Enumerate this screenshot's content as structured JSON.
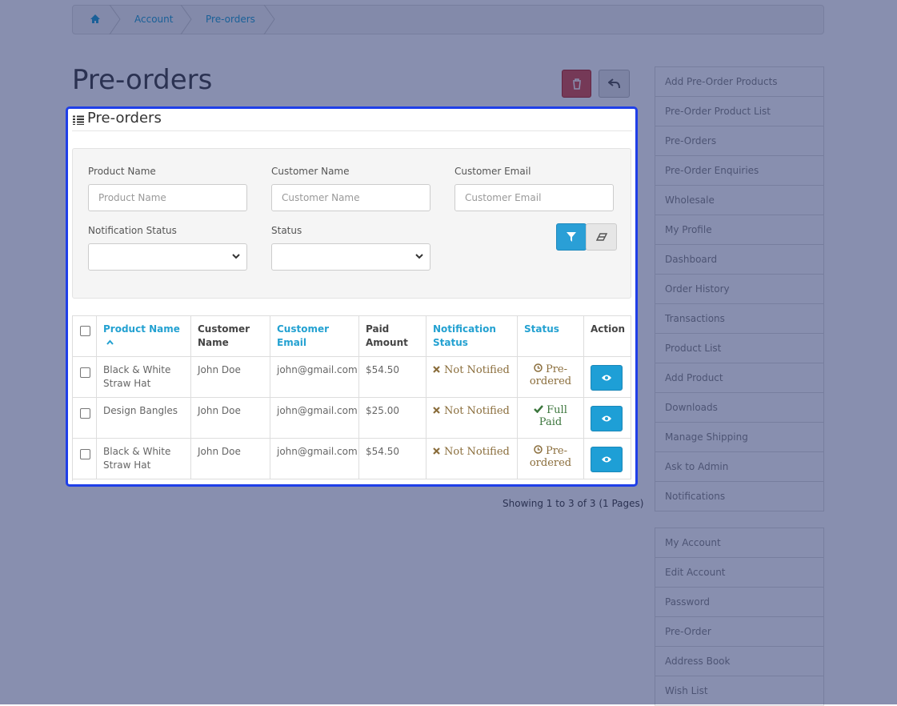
{
  "breadcrumb": [
    "Account",
    "Pre-orders"
  ],
  "page_title": "Pre-orders",
  "panel": {
    "title": "Pre-orders",
    "filters": [
      {
        "label": "Product Name",
        "placeholder": "Product Name"
      },
      {
        "label": "Customer Name",
        "placeholder": "Customer Name"
      },
      {
        "label": "Customer Email",
        "placeholder": "Customer Email"
      }
    ],
    "selects": [
      {
        "label": "Notification Status"
      },
      {
        "label": "Status"
      }
    ],
    "table": {
      "headers": [
        "Product Name",
        "Customer Name",
        "Customer Email",
        "Paid Amount",
        "Notification Status",
        "Status",
        "Action"
      ],
      "rows": [
        [
          "Black & White Straw Hat",
          "John Doe",
          "john@gmail.com",
          "$54.50",
          "Not Notified",
          "Pre-ordered"
        ],
        [
          "Design Bangles",
          "John Doe",
          "john@gmail.com",
          "$25.00",
          "Not Notified",
          "Full Paid"
        ],
        [
          "Black & White Straw Hat",
          "John Doe",
          "john@gmail.com",
          "$54.50",
          "Not Notified",
          "Pre-ordered"
        ]
      ]
    },
    "pagination": "Showing 1 to 3 of 3 (1 Pages)"
  },
  "sidebar": [
    [
      "Add Pre-Order Products",
      "Pre-Order Product List",
      "Pre-Orders",
      "Pre-Order Enquiries",
      "Wholesale",
      "My Profile",
      "Dashboard",
      "Order History",
      "Transactions",
      "Product List",
      "Add Product",
      "Downloads",
      "Manage Shipping",
      "Ask to Admin",
      "Notifications"
    ],
    [
      "My Account",
      "Edit Account",
      "Password",
      "Pre-Order",
      "Address Book",
      "Wish List"
    ]
  ]
}
